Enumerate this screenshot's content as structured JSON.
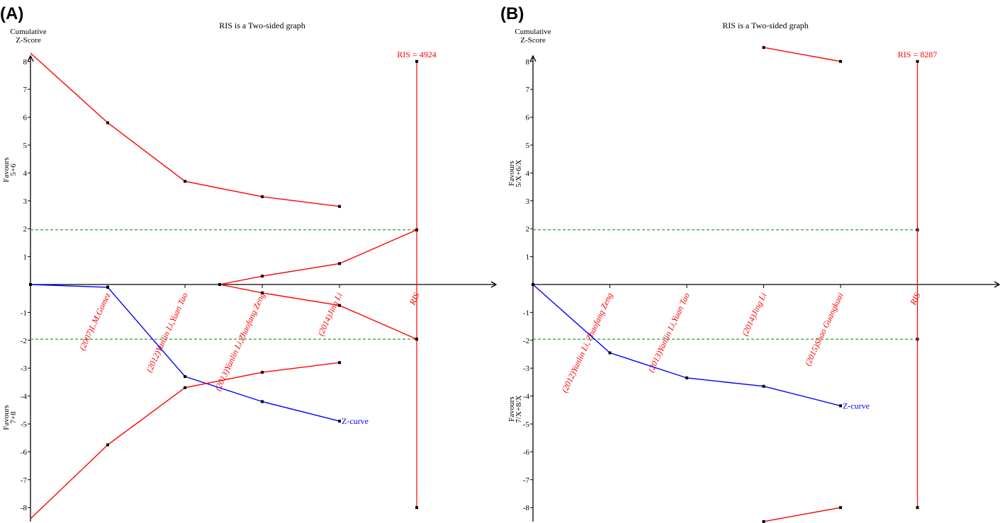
{
  "chart_data": [
    {
      "type": "line",
      "panel_label": "(A)",
      "title": "RIS is a Two-sided graph",
      "ylabel": "Cumulative\nZ-Score",
      "ylim": [
        -8,
        8
      ],
      "yticks": [
        8,
        7,
        6,
        5,
        4,
        3,
        2,
        1,
        -1,
        -2,
        -3,
        -4,
        -5,
        -6,
        -7,
        -8
      ],
      "favours_upper": "Favours\n5+6",
      "favours_lower": "Favours\n7+8",
      "ris_label": "RIS = 4924",
      "x_labels": [
        {
          "text": "(2007)L.M.Gomez",
          "x": 1
        },
        {
          "text": "(2012)Yanlin Li,Yuan Tao",
          "x": 2
        },
        {
          "text": "(2013)Yanlin Li,Zhaofang Zeng",
          "x": 3
        },
        {
          "text": "(2014)Jing Li",
          "x": 4
        },
        {
          "text": "RIS",
          "x": 5
        }
      ],
      "series": [
        {
          "name": "Z-curve",
          "color": "#0000ff",
          "points": [
            [
              0,
              0
            ],
            [
              1,
              -0.1
            ],
            [
              2,
              -3.3
            ],
            [
              3,
              -4.2
            ],
            [
              4,
              -4.9
            ]
          ]
        },
        {
          "color": "#ff0000",
          "points": [
            [
              0,
              8.3
            ],
            [
              1,
              5.8
            ],
            [
              2,
              3.7
            ],
            [
              3,
              3.15
            ],
            [
              4,
              2.8
            ]
          ]
        },
        {
          "color": "#ff0000",
          "points": [
            [
              0,
              -8.4
            ],
            [
              1,
              -5.75
            ],
            [
              2,
              -3.7
            ],
            [
              3,
              -3.15
            ],
            [
              4,
              -2.8
            ]
          ]
        },
        {
          "color": "#ff0000",
          "points": [
            [
              2.45,
              0
            ],
            [
              3,
              0.3
            ],
            [
              4,
              0.75
            ],
            [
              5,
              1.96
            ]
          ]
        },
        {
          "color": "#ff0000",
          "points": [
            [
              2.45,
              0
            ],
            [
              3,
              -0.3
            ],
            [
              4,
              -0.75
            ],
            [
              5,
              -1.96
            ]
          ]
        }
      ],
      "conventional_boundaries": [
        1.96,
        -1.96
      ],
      "ris_x": 5
    },
    {
      "type": "line",
      "panel_label": "(B)",
      "title": "RIS is a Two-sided graph",
      "ylabel": "Cumulative\nZ-Score",
      "ylim": [
        -8,
        8
      ],
      "yticks": [
        8,
        7,
        6,
        5,
        4,
        3,
        2,
        1,
        -1,
        -2,
        -3,
        -4,
        -5,
        -6,
        -7,
        -8
      ],
      "favours_upper": "Favours\n5/X+6/X",
      "favours_lower": "Favours\n7/X+8/X",
      "ris_label": "RIS = 8287",
      "x_labels": [
        {
          "text": "(2012)Yanlin Li, Zhaofang Zeng",
          "x": 1
        },
        {
          "text": "(2013)Yanlin Li,Yuan Tao",
          "x": 2
        },
        {
          "text": "(2014)Jing Li",
          "x": 3
        },
        {
          "text": "(2015)Shao Guangkuai",
          "x": 4
        },
        {
          "text": "RIS",
          "x": 5
        }
      ],
      "series": [
        {
          "name": "Z-curve",
          "color": "#0000ff",
          "points": [
            [
              0,
              0
            ],
            [
              1,
              -2.45
            ],
            [
              2,
              -3.35
            ],
            [
              3,
              -3.65
            ],
            [
              4,
              -4.35
            ]
          ]
        },
        {
          "color": "#ff0000",
          "points": [
            [
              3,
              8.5
            ],
            [
              4,
              8.0
            ]
          ]
        },
        {
          "color": "#ff0000",
          "points": [
            [
              3,
              -8.5
            ],
            [
              4,
              -8.0
            ]
          ]
        }
      ],
      "conventional_boundaries": [
        1.96,
        -1.96
      ],
      "ris_x": 5
    }
  ]
}
